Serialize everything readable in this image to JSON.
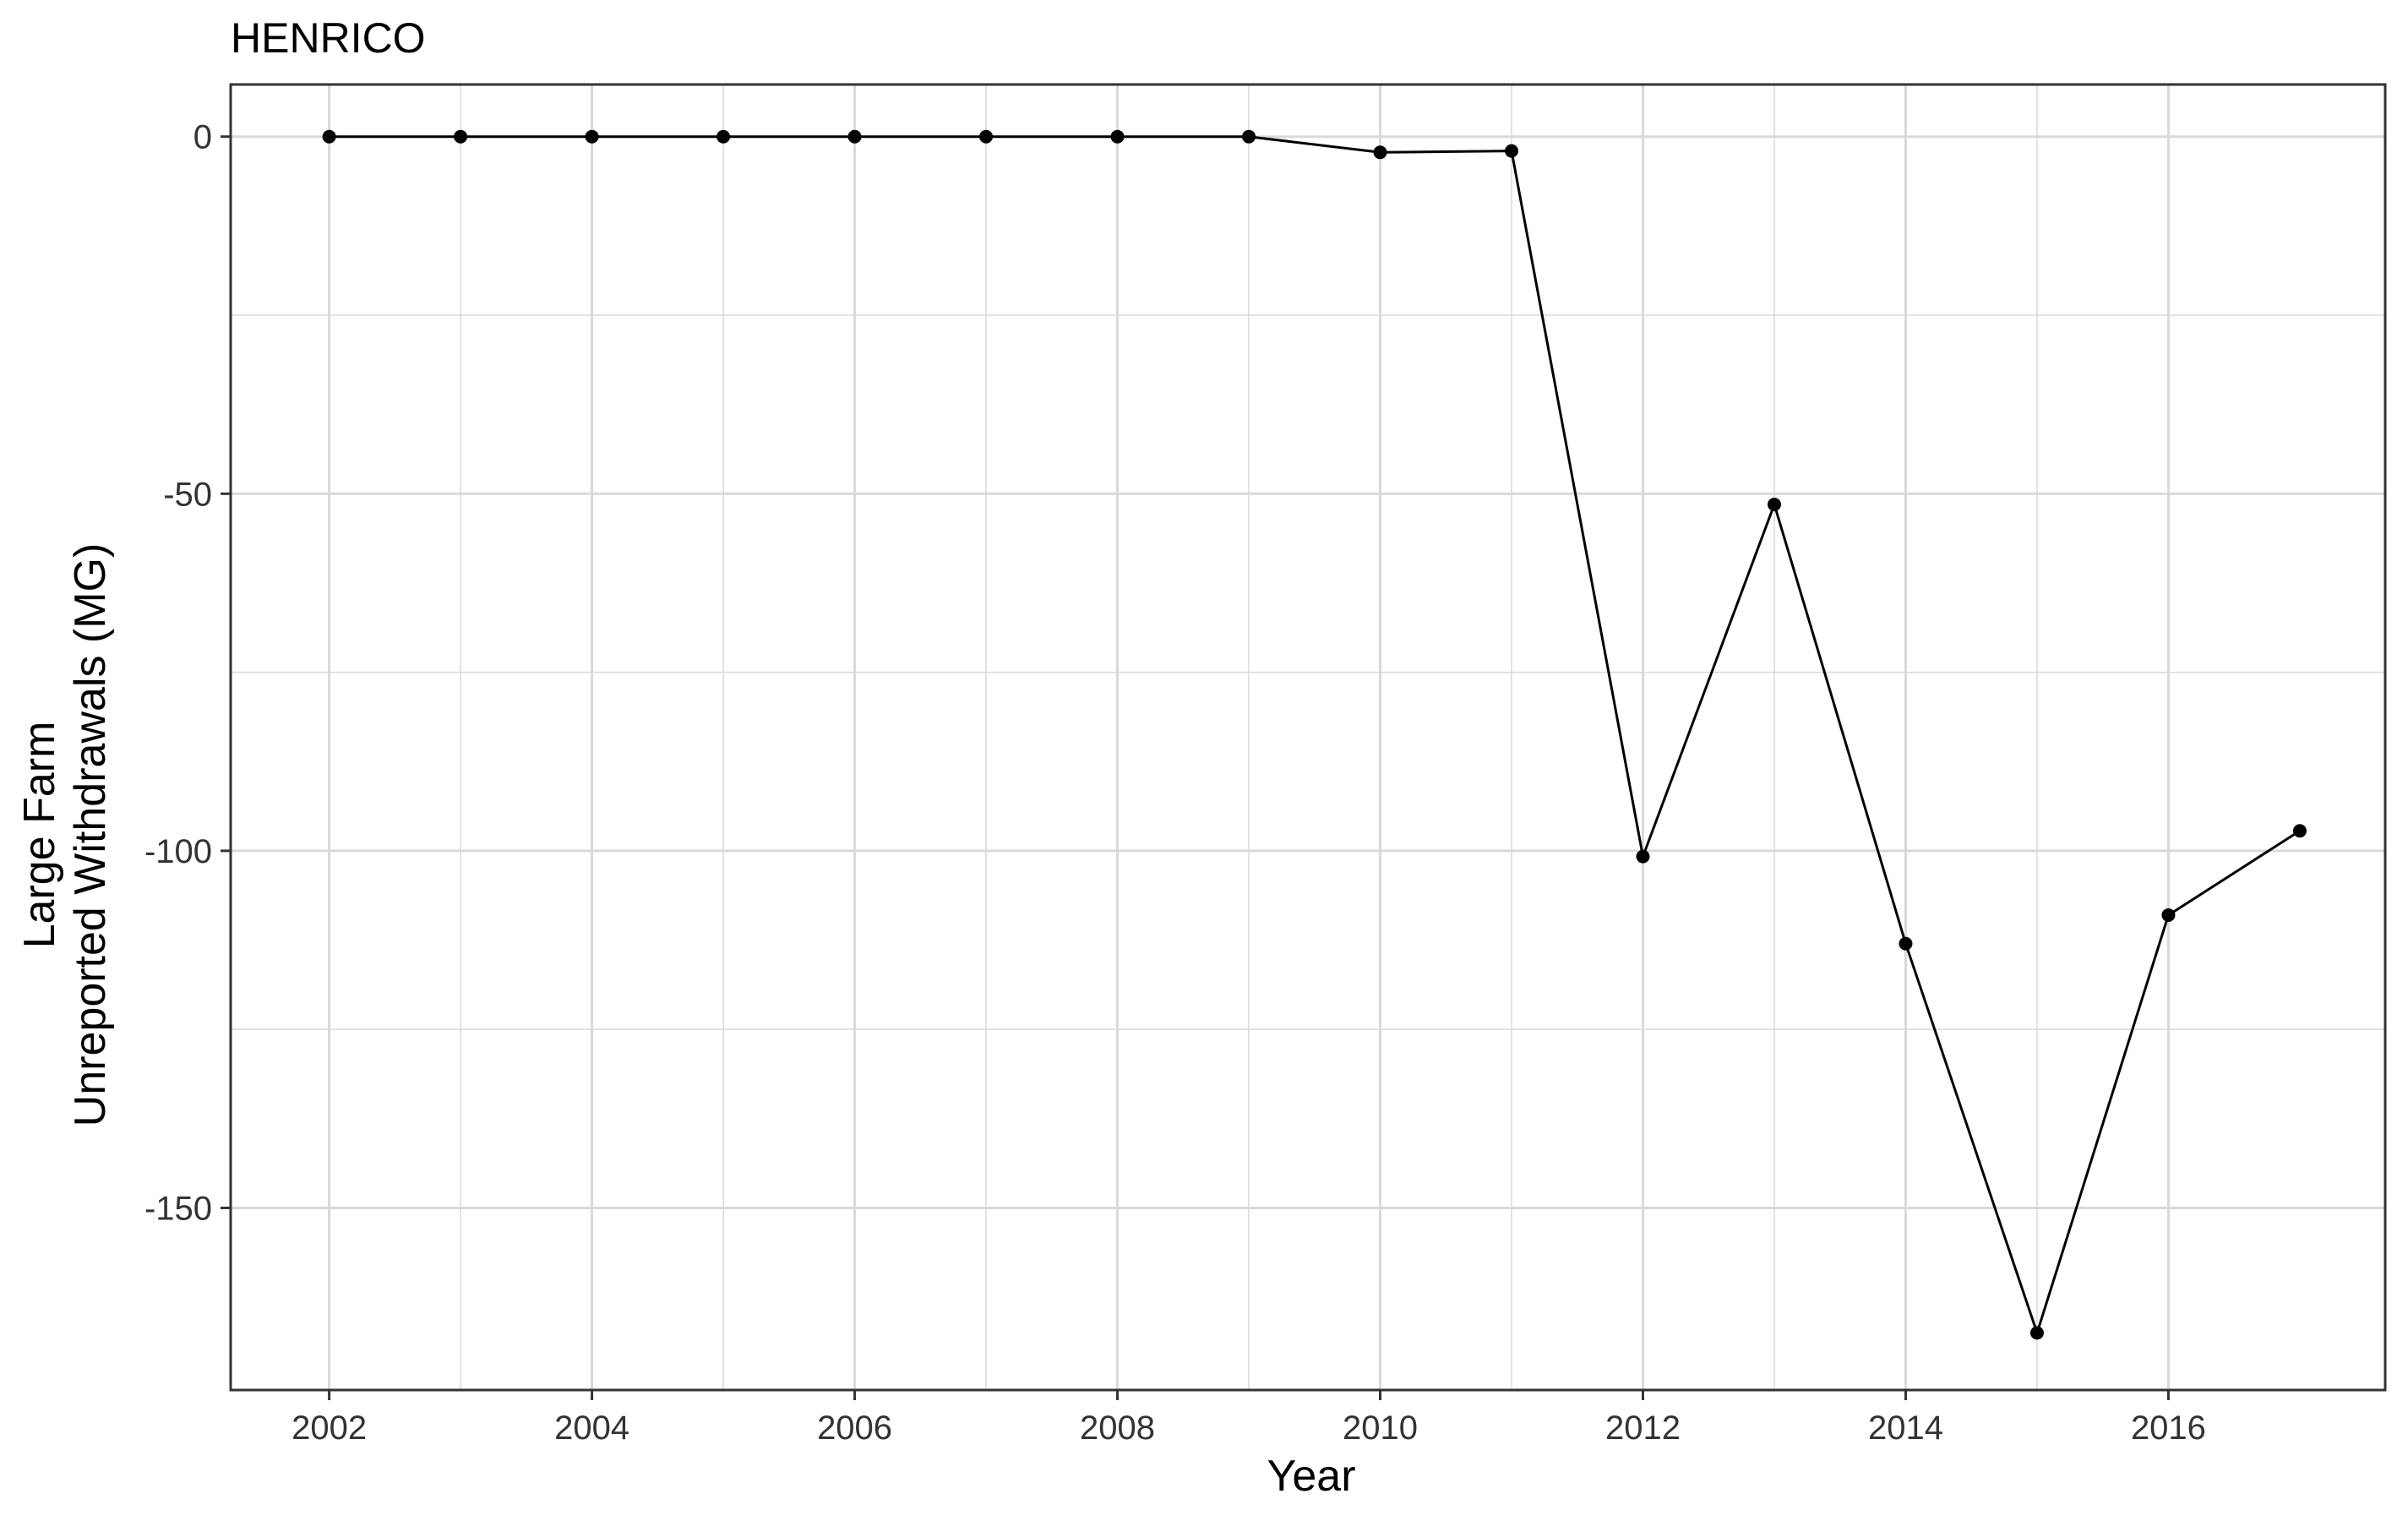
{
  "chart_data": {
    "type": "line",
    "title": "HENRICO",
    "xlabel": "Year",
    "ylabel_lines": [
      "Large Farm",
      "Unreported Withdrawals (MG)"
    ],
    "x_ticks": [
      2002,
      2004,
      2006,
      2008,
      2010,
      2012,
      2014,
      2016
    ],
    "y_ticks": [
      0,
      -50,
      -100,
      -150
    ],
    "xlim": [
      2001.25,
      2017.65
    ],
    "ylim": [
      -175.5,
      7.3
    ],
    "grid": true,
    "legend": "none",
    "series": [
      {
        "x": [
          2002,
          2003,
          2004,
          2005,
          2006,
          2007,
          2008,
          2009,
          2010,
          2011,
          2012,
          2013,
          2014,
          2015,
          2016,
          2017
        ],
        "y": [
          0,
          0,
          0,
          0,
          0,
          0,
          0,
          0,
          -2.2,
          -2.0,
          -100.8,
          -51.5,
          -113,
          -167.5,
          -109,
          -97.2
        ]
      }
    ],
    "colors": {
      "line": "#000000",
      "point": "#000000",
      "grid": "#d9d9d9",
      "panel_border": "#333333"
    }
  }
}
